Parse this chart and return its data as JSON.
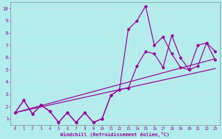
{
  "x": [
    0,
    1,
    2,
    3,
    4,
    5,
    6,
    7,
    8,
    9,
    10,
    11,
    12,
    13,
    14,
    15,
    16,
    17,
    18,
    19,
    20,
    21,
    22,
    23
  ],
  "line1": [
    1.5,
    2.5,
    1.4,
    2.1,
    1.6,
    0.7,
    1.5,
    0.7,
    1.5,
    0.7,
    1.0,
    2.9,
    3.4,
    8.3,
    9.0,
    10.2,
    7.0,
    7.7,
    6.3,
    5.2,
    5.0,
    7.0,
    7.2,
    6.5
  ],
  "line2": [
    1.5,
    2.5,
    1.4,
    2.1,
    1.6,
    0.7,
    1.5,
    0.7,
    1.5,
    0.7,
    1.0,
    2.9,
    3.4,
    3.5,
    5.3,
    6.5,
    6.3,
    5.2,
    7.8,
    6.0,
    5.0,
    5.3,
    7.2,
    5.8
  ],
  "trend1_y_start": 1.5,
  "trend1_y_end": 5.9,
  "trend2_y_start": 1.5,
  "trend2_y_end": 5.1,
  "line_color": "#990099",
  "bg_color": "#b2eded",
  "grid_color": "#c8e8e8",
  "spine_color": "#888888",
  "xlabel": "Windchill (Refroidissement éolien,°C)",
  "xlim": [
    0,
    23
  ],
  "ylim": [
    0.5,
    10.5
  ],
  "yticks": [
    1,
    2,
    3,
    4,
    5,
    6,
    7,
    8,
    9,
    10
  ],
  "xticks": [
    0,
    1,
    2,
    3,
    4,
    5,
    6,
    7,
    8,
    9,
    10,
    11,
    12,
    13,
    14,
    15,
    16,
    17,
    18,
    19,
    20,
    21,
    22,
    23
  ]
}
